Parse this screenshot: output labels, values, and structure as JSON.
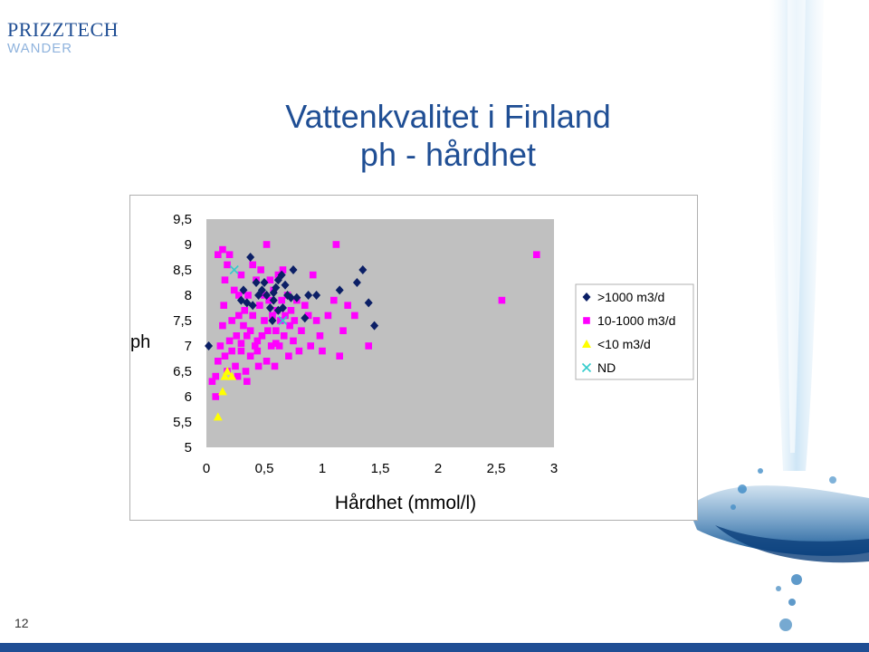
{
  "logo": {
    "brand": "PRIZZTECH",
    "sub": "WANDER"
  },
  "slide": {
    "title_line1": "Vattenkvalitet i Finland",
    "title_line2": "ph - hårdhet",
    "page_number": "12"
  },
  "colors": {
    "navy": "#0b1f66",
    "magenta": "#ff00ff",
    "yellow": "#ffff00",
    "cyan": "#33cccc",
    "plot_bg": "#c0c0c0",
    "title": "#1f4e94"
  },
  "chart_data": {
    "type": "scatter",
    "title": "",
    "xlabel": "Hårdhet (mmol/l)",
    "ylabel": "ph",
    "xlim": [
      0,
      3
    ],
    "ylim": [
      5,
      9.5
    ],
    "x_ticks": [
      "0",
      "0,5",
      "1",
      "1,5",
      "2",
      "2,5",
      "3"
    ],
    "y_ticks": [
      "9,5",
      "9",
      "8,5",
      "8",
      "7,5",
      "7",
      "6,5",
      "6",
      "5,5",
      "5"
    ],
    "grid": false,
    "legend_position": "right",
    "series": [
      {
        "name": ">1000 m3/d",
        "marker": "diamond",
        "color": "#0b1f66",
        "points": [
          [
            0.02,
            7.0
          ],
          [
            0.38,
            8.75
          ],
          [
            0.43,
            8.25
          ],
          [
            0.48,
            8.1
          ],
          [
            0.52,
            8.0
          ],
          [
            0.55,
            7.75
          ],
          [
            0.57,
            7.5
          ],
          [
            0.6,
            8.15
          ],
          [
            0.62,
            7.7
          ],
          [
            0.65,
            8.4
          ],
          [
            0.68,
            8.2
          ],
          [
            0.7,
            8.0
          ],
          [
            0.75,
            8.5
          ],
          [
            0.78,
            7.95
          ],
          [
            0.85,
            7.55
          ],
          [
            0.88,
            8.0
          ],
          [
            0.95,
            8.0
          ],
          [
            1.15,
            8.1
          ],
          [
            1.3,
            8.25
          ],
          [
            1.35,
            8.5
          ],
          [
            1.4,
            7.85
          ],
          [
            1.45,
            7.4
          ],
          [
            0.3,
            7.9
          ],
          [
            0.35,
            7.85
          ],
          [
            0.4,
            7.8
          ],
          [
            0.45,
            8.0
          ],
          [
            0.5,
            8.25
          ],
          [
            0.58,
            7.9
          ],
          [
            0.62,
            8.3
          ],
          [
            0.66,
            7.75
          ],
          [
            0.73,
            7.95
          ],
          [
            0.58,
            8.05
          ],
          [
            0.32,
            8.1
          ]
        ]
      },
      {
        "name": "10-1000 m3/d",
        "marker": "square",
        "color": "#ff00ff",
        "points": [
          [
            0.05,
            6.3
          ],
          [
            0.08,
            6.0
          ],
          [
            0.08,
            6.4
          ],
          [
            0.1,
            6.7
          ],
          [
            0.12,
            7.0
          ],
          [
            0.14,
            7.4
          ],
          [
            0.15,
            7.8
          ],
          [
            0.16,
            8.3
          ],
          [
            0.18,
            8.6
          ],
          [
            0.18,
            6.5
          ],
          [
            0.2,
            7.1
          ],
          [
            0.22,
            7.5
          ],
          [
            0.24,
            8.1
          ],
          [
            0.25,
            6.6
          ],
          [
            0.26,
            7.2
          ],
          [
            0.28,
            7.6
          ],
          [
            0.28,
            8.0
          ],
          [
            0.3,
            6.9
          ],
          [
            0.3,
            8.4
          ],
          [
            0.32,
            7.4
          ],
          [
            0.33,
            7.7
          ],
          [
            0.34,
            6.5
          ],
          [
            0.35,
            7.2
          ],
          [
            0.36,
            8.0
          ],
          [
            0.38,
            7.3
          ],
          [
            0.38,
            6.8
          ],
          [
            0.4,
            7.6
          ],
          [
            0.4,
            8.6
          ],
          [
            0.42,
            7.0
          ],
          [
            0.43,
            8.3
          ],
          [
            0.44,
            7.1
          ],
          [
            0.45,
            6.6
          ],
          [
            0.46,
            7.8
          ],
          [
            0.47,
            8.5
          ],
          [
            0.48,
            7.2
          ],
          [
            0.5,
            7.5
          ],
          [
            0.5,
            8.0
          ],
          [
            0.52,
            6.7
          ],
          [
            0.53,
            7.3
          ],
          [
            0.54,
            7.9
          ],
          [
            0.55,
            8.3
          ],
          [
            0.56,
            7.0
          ],
          [
            0.57,
            7.6
          ],
          [
            0.58,
            8.1
          ],
          [
            0.59,
            6.6
          ],
          [
            0.6,
            7.3
          ],
          [
            0.61,
            7.7
          ],
          [
            0.62,
            8.4
          ],
          [
            0.63,
            7.0
          ],
          [
            0.64,
            7.5
          ],
          [
            0.65,
            7.9
          ],
          [
            0.66,
            8.5
          ],
          [
            0.67,
            7.2
          ],
          [
            0.68,
            7.6
          ],
          [
            0.7,
            8.0
          ],
          [
            0.71,
            6.8
          ],
          [
            0.72,
            7.4
          ],
          [
            0.73,
            7.7
          ],
          [
            0.75,
            7.1
          ],
          [
            0.76,
            7.5
          ],
          [
            0.78,
            7.9
          ],
          [
            0.8,
            6.9
          ],
          [
            0.82,
            7.3
          ],
          [
            0.85,
            7.8
          ],
          [
            0.88,
            7.6
          ],
          [
            0.9,
            7.0
          ],
          [
            0.92,
            8.4
          ],
          [
            0.95,
            7.5
          ],
          [
            0.98,
            7.2
          ],
          [
            1.0,
            6.9
          ],
          [
            1.05,
            7.6
          ],
          [
            1.1,
            7.9
          ],
          [
            1.12,
            9.0
          ],
          [
            1.15,
            6.8
          ],
          [
            1.18,
            7.3
          ],
          [
            1.22,
            7.8
          ],
          [
            1.28,
            7.6
          ],
          [
            1.4,
            7.0
          ],
          [
            2.55,
            7.9
          ],
          [
            2.85,
            8.8
          ],
          [
            0.1,
            8.8
          ],
          [
            0.14,
            8.9
          ],
          [
            0.2,
            8.8
          ],
          [
            0.52,
            9.0
          ],
          [
            0.35,
            6.3
          ],
          [
            0.27,
            6.4
          ],
          [
            0.16,
            6.8
          ],
          [
            0.22,
            6.9
          ],
          [
            0.44,
            6.9
          ],
          [
            0.6,
            7.05
          ],
          [
            0.3,
            7.05
          ]
        ]
      },
      {
        "name": "<10 m3/d",
        "marker": "triangle",
        "color": "#ffff00",
        "points": [
          [
            0.1,
            5.6
          ],
          [
            0.14,
            6.1
          ],
          [
            0.16,
            6.4
          ],
          [
            0.18,
            6.5
          ],
          [
            0.22,
            6.4
          ]
        ]
      },
      {
        "name": "ND",
        "marker": "x",
        "color": "#33cccc",
        "points": [
          [
            0.24,
            8.5
          ],
          [
            0.66,
            7.5
          ]
        ]
      }
    ]
  }
}
